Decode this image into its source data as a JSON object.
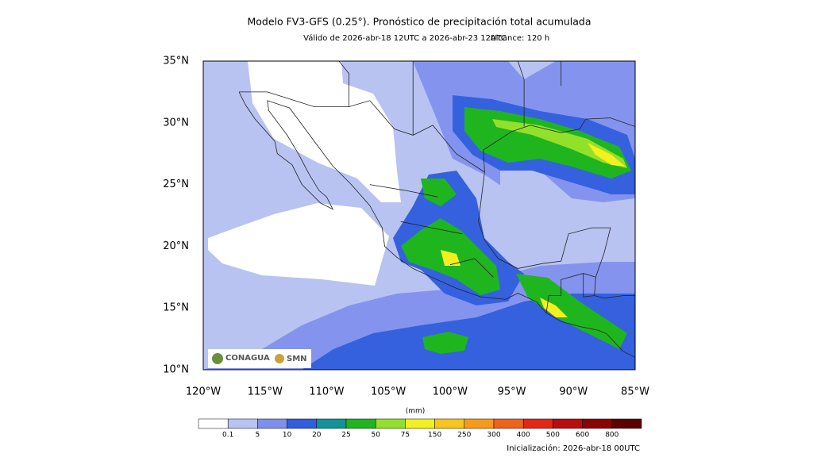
{
  "header": {
    "title": "Modelo FV3-GFS (0.25°). Pronóstico de precipitación total acumulada",
    "subtitle": "Válido de 2026-abr-18 12UTC a 2026-abr-23 12UTC",
    "range": "Alcance: 120 h"
  },
  "map": {
    "lat_labels": [
      "35°N",
      "30°N",
      "25°N",
      "20°N",
      "15°N",
      "10°N"
    ],
    "lon_labels": [
      "120°W",
      "115°W",
      "110°W",
      "105°W",
      "100°W",
      "95°W",
      "90°W",
      "85°W"
    ],
    "logos": [
      "CONAGUA",
      "SMN"
    ]
  },
  "legend": {
    "unit": "(mm)",
    "levels": [
      0.1,
      5,
      10,
      20,
      25,
      50,
      75,
      150,
      250,
      300,
      400,
      500,
      600,
      800
    ],
    "colors": [
      "#ffffff",
      "#b8c3f2",
      "#7f8ff0",
      "#2f5fe0",
      "#12939a",
      "#1fb51f",
      "#93e02a",
      "#f3f01e",
      "#f8c51a",
      "#f79a1a",
      "#f0621a",
      "#e52616",
      "#bb0d0d",
      "#8a0202",
      "#5c0000"
    ]
  },
  "footer": "Inicialización: 2026-abr-18 00UTC"
}
